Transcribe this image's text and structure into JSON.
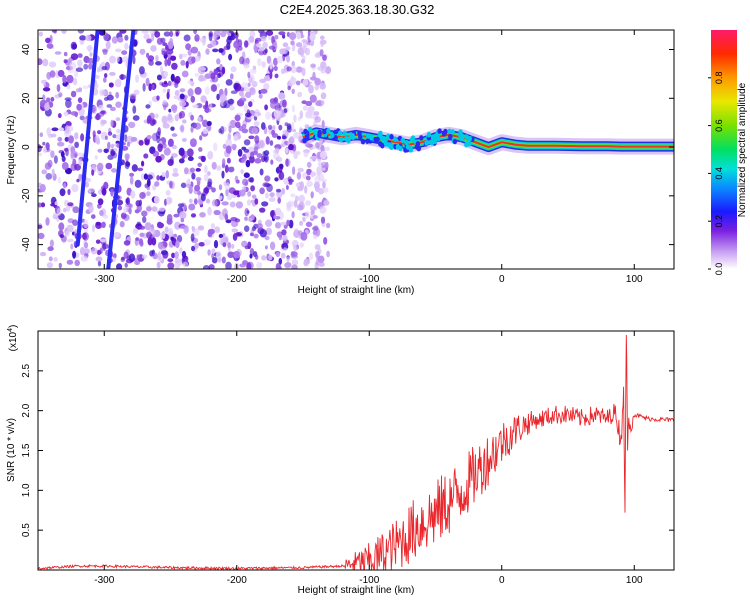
{
  "title": "C2E4.2025.363.18.30.G32",
  "chart_data": [
    {
      "type": "heatmap",
      "xlabel": "Height of straight line (km)",
      "ylabel": "Frequency (Hz)",
      "xlim": [
        -350,
        130
      ],
      "ylim": [
        -50,
        48
      ],
      "x_ticks": [
        -300,
        -200,
        -100,
        0,
        100
      ],
      "x_tick_labels": [
        "-300",
        "-200",
        "-100",
        "0",
        "100"
      ],
      "y_ticks": [
        -40,
        -20,
        0,
        20,
        40
      ],
      "y_tick_labels": [
        "-40",
        "-20",
        "0",
        "20",
        "40"
      ],
      "noise_region_x": [
        -350,
        -140
      ],
      "streaks": [
        {
          "name": "streak-1",
          "x": [
            -320,
            -305
          ],
          "y": [
            -40,
            48
          ]
        },
        {
          "name": "streak-2",
          "x": [
            -297,
            -278
          ],
          "y": [
            -50,
            48
          ]
        }
      ],
      "trace": {
        "x": [
          -150,
          -140,
          -130,
          -120,
          -110,
          -100,
          -90,
          -80,
          -70,
          -60,
          -50,
          -40,
          -30,
          -20,
          -10,
          0,
          10,
          20,
          40,
          60,
          80,
          90,
          100,
          130
        ],
        "y": [
          4,
          6,
          5,
          4,
          5,
          4,
          3,
          2,
          1,
          2,
          4,
          5,
          4,
          2,
          0,
          2,
          1,
          0.5,
          0.5,
          0.3,
          0.3,
          0.2,
          0.2,
          0.2
        ]
      },
      "colorbar": {
        "label": "Normalized spectral amplitude",
        "ticks": [
          0.0,
          0.2,
          0.4,
          0.6,
          0.8
        ],
        "tick_labels": [
          "0.0",
          "0.2",
          "0.4",
          "0.6",
          "0.8"
        ],
        "range": [
          0,
          1
        ]
      }
    },
    {
      "type": "line",
      "xlabel": "Height of straight line (km)",
      "ylabel": "SNR (10 * v/v)",
      "multiplier_label": "(x10",
      "multiplier_exp": "4",
      "multiplier_close": ")",
      "xlim": [
        -350,
        130
      ],
      "ylim": [
        0,
        3.0
      ],
      "x_ticks": [
        -300,
        -200,
        -100,
        0,
        100
      ],
      "x_tick_labels": [
        "-300",
        "-200",
        "-100",
        "0",
        "100"
      ],
      "y_ticks": [
        0.5,
        1.0,
        1.5,
        2.0,
        2.5
      ],
      "y_tick_labels": [
        "0.5",
        "1.0",
        "1.5",
        "2.0",
        "2.5"
      ],
      "series": [
        {
          "name": "SNR",
          "color": "#e8262b",
          "x": [
            -350,
            -320,
            -300,
            -250,
            -200,
            -150,
            -120,
            -100,
            -90,
            -80,
            -70,
            -60,
            -50,
            -40,
            -30,
            -20,
            -10,
            0,
            10,
            20,
            30,
            40,
            50,
            60,
            70,
            80,
            85,
            88,
            90,
            92,
            93,
            94,
            95,
            96,
            100,
            110,
            130
          ],
          "y": [
            0.02,
            0.05,
            0.05,
            0.03,
            0.02,
            0.03,
            0.05,
            0.12,
            0.2,
            0.3,
            0.45,
            0.6,
            0.7,
            0.85,
            1.0,
            1.2,
            1.4,
            1.6,
            1.75,
            1.85,
            1.9,
            1.95,
            1.95,
            1.9,
            1.95,
            1.9,
            2.0,
            1.8,
            1.6,
            2.3,
            0.72,
            2.9,
            1.6,
            1.85,
            1.95,
            1.9,
            1.88
          ]
        }
      ]
    }
  ]
}
